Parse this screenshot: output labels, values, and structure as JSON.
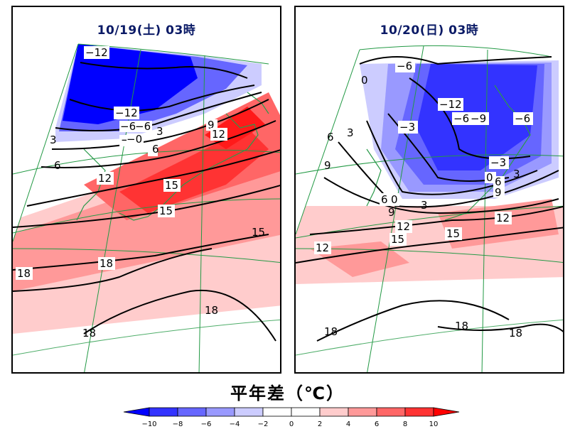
{
  "panels": [
    {
      "title": "10/19(土) 03時",
      "labels": [
        "−12",
        "−12",
        "−6",
        "−6",
        "−3",
        "−0",
        "−3",
        "3",
        "6",
        "9",
        "12",
        "12",
        "15",
        "15",
        "15",
        "18",
        "18",
        "18",
        "18",
        "3",
        "6",
        "6"
      ]
    },
    {
      "title": "10/20(日) 03時",
      "labels": [
        "0",
        "−6",
        "−12",
        "−6",
        "−9",
        "−6",
        "−3",
        "−3",
        "0",
        "3",
        "6",
        "9",
        "6",
        "9",
        "12",
        "3",
        "15",
        "12",
        "15",
        "6",
        "0",
        "12",
        "18",
        "18",
        "18",
        "9",
        "3"
      ]
    }
  ],
  "legend": {
    "title": "平年差（℃）",
    "ticks": [
      "−10",
      "−8",
      "−6",
      "−4",
      "−2",
      "0",
      "2",
      "4",
      "6",
      "8",
      "10"
    ],
    "colors": [
      "#0000ff",
      "#3333ff",
      "#6666ff",
      "#9999ff",
      "#ccccff",
      "#ffffff",
      "#ffffff",
      "#ffcccc",
      "#ff9999",
      "#ff6666",
      "#ff3333",
      "#ff0000"
    ]
  }
}
